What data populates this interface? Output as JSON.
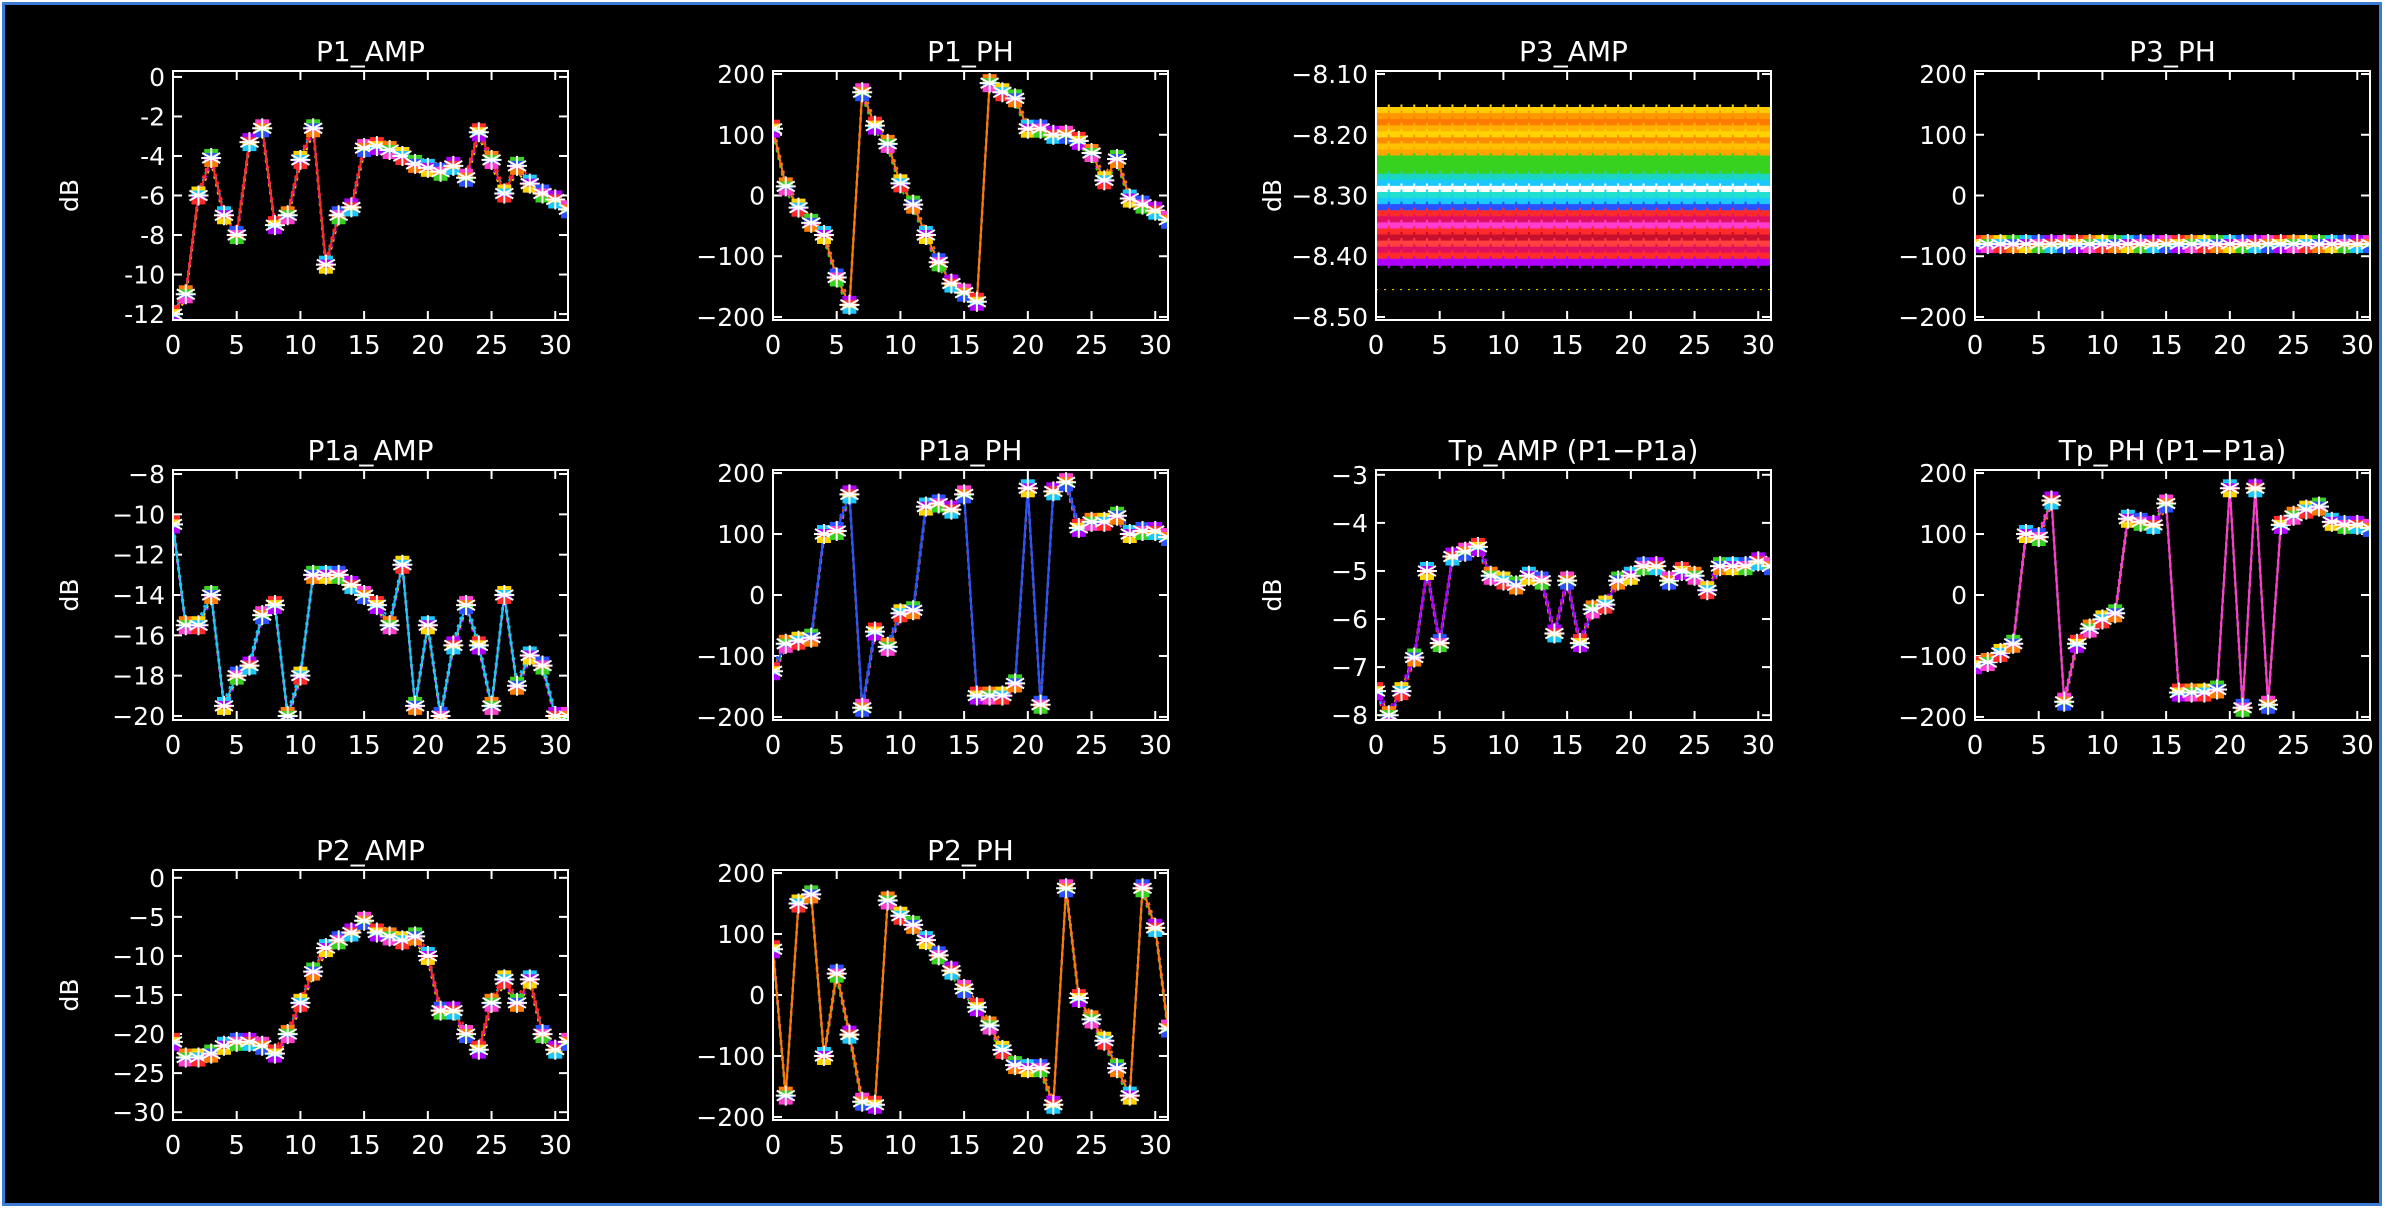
{
  "window": {
    "border_color": "#3a7bd5",
    "background": "#000000"
  },
  "chart_data": [
    {
      "type": "line",
      "title": "P1_AMP",
      "ylabel": "dB",
      "xlim": [
        0,
        31
      ],
      "ylim": [
        -12.3,
        0.3
      ],
      "xticks": [
        0,
        5,
        10,
        15,
        20,
        25,
        30
      ],
      "yticks": [
        0,
        -2,
        -4,
        -6,
        -8,
        -10,
        -12
      ],
      "ytick_labels": [
        "0",
        "-2",
        "-4",
        "-6",
        "-8",
        "-10",
        "-12"
      ],
      "x": [
        0,
        1,
        2,
        3,
        4,
        5,
        6,
        7,
        8,
        9,
        10,
        11,
        12,
        13,
        14,
        15,
        16,
        17,
        18,
        19,
        20,
        21,
        22,
        23,
        24,
        25,
        26,
        27,
        28,
        29,
        30,
        31
      ],
      "y": [
        -12,
        -11,
        -6,
        -4.1,
        -7,
        -8,
        -3.3,
        -2.6,
        -7.5,
        -7,
        -4.2,
        -2.6,
        -9.5,
        -7,
        -6.6,
        -3.6,
        -3.5,
        -3.7,
        -4,
        -4.4,
        -4.6,
        -4.8,
        -4.5,
        -5.1,
        -2.8,
        -4.2,
        -5.9,
        -4.5,
        -5.4,
        -5.9,
        -6.2,
        -6.7
      ]
    },
    {
      "type": "line",
      "title": "P1_PH",
      "ylabel": "",
      "xlim": [
        0,
        31
      ],
      "ylim": [
        -205,
        205
      ],
      "xticks": [
        0,
        5,
        10,
        15,
        20,
        25,
        30
      ],
      "yticks": [
        200,
        100,
        0,
        -100,
        -200
      ],
      "ytick_labels": [
        "200",
        "100",
        "0",
        "−100",
        "−200"
      ],
      "x": [
        0,
        1,
        2,
        3,
        4,
        5,
        6,
        7,
        8,
        9,
        10,
        11,
        12,
        13,
        14,
        15,
        16,
        17,
        18,
        19,
        20,
        21,
        22,
        23,
        24,
        25,
        26,
        27,
        28,
        29,
        30,
        31
      ],
      "y": [
        110,
        15,
        -20,
        -45,
        -65,
        -135,
        -180,
        170,
        115,
        85,
        20,
        -15,
        -65,
        -110,
        -145,
        -160,
        -175,
        185,
        170,
        160,
        110,
        110,
        100,
        100,
        90,
        70,
        25,
        60,
        -5,
        -15,
        -25,
        -40
      ]
    },
    {
      "type": "line",
      "title": "P3_AMP",
      "ylabel": "dB",
      "xlim": [
        0,
        31
      ],
      "ylim": [
        -8.505,
        -8.095
      ],
      "xticks": [
        0,
        5,
        10,
        15,
        20,
        25,
        30
      ],
      "yticks": [
        -8.1,
        -8.2,
        -8.3,
        -8.4,
        -8.5
      ],
      "ytick_labels": [
        "−8.10",
        "−8.20",
        "−8.30",
        "−8.40",
        "−8.50"
      ],
      "x": [
        0,
        31
      ],
      "y": [
        -8.33,
        -8.33
      ]
    },
    {
      "type": "line",
      "title": "P3_PH",
      "ylabel": "",
      "xlim": [
        0,
        31
      ],
      "ylim": [
        -205,
        205
      ],
      "xticks": [
        0,
        5,
        10,
        15,
        20,
        25,
        30
      ],
      "yticks": [
        200,
        100,
        0,
        -100,
        -200
      ],
      "ytick_labels": [
        "200",
        "100",
        "0",
        "−100",
        "−200"
      ],
      "x": [
        0,
        1,
        2,
        3,
        4,
        5,
        6,
        7,
        8,
        9,
        10,
        11,
        12,
        13,
        14,
        15,
        16,
        17,
        18,
        19,
        20,
        21,
        22,
        23,
        24,
        25,
        26,
        27,
        28,
        29,
        30,
        31
      ],
      "y": [
        -80,
        -80,
        -80,
        -80,
        -80,
        -80,
        -80,
        -80,
        -80,
        -80,
        -80,
        -80,
        -80,
        -80,
        -80,
        -80,
        -80,
        -80,
        -80,
        -80,
        -80,
        -80,
        -80,
        -80,
        -80,
        -80,
        -80,
        -80,
        -80,
        -80,
        -80,
        -80
      ]
    },
    {
      "type": "line",
      "title": "P1a_AMP",
      "ylabel": "dB",
      "xlim": [
        0,
        31
      ],
      "ylim": [
        -20.2,
        -7.8
      ],
      "xticks": [
        0,
        5,
        10,
        15,
        20,
        25,
        30
      ],
      "yticks": [
        -8,
        -10,
        -12,
        -14,
        -16,
        -18,
        -20
      ],
      "ytick_labels": [
        "−8",
        "−10",
        "−12",
        "−14",
        "−16",
        "−18",
        "−20"
      ],
      "x": [
        0,
        1,
        2,
        3,
        4,
        5,
        6,
        7,
        8,
        9,
        10,
        11,
        12,
        13,
        14,
        15,
        16,
        17,
        18,
        19,
        20,
        21,
        22,
        23,
        24,
        25,
        26,
        27,
        28,
        29,
        30,
        31
      ],
      "y": [
        -10.5,
        -15.5,
        -15.5,
        -14,
        -19.5,
        -18,
        -17.5,
        -15,
        -14.5,
        -20,
        -18,
        -13,
        -13,
        -13,
        -13.5,
        -14,
        -14.5,
        -15.5,
        -12.5,
        -19.5,
        -15.5,
        -20,
        -16.5,
        -14.5,
        -16.5,
        -19.5,
        -14,
        -18.5,
        -17,
        -17.5,
        -20,
        -20
      ]
    },
    {
      "type": "line",
      "title": "P1a_PH",
      "ylabel": "",
      "xlim": [
        0,
        31
      ],
      "ylim": [
        -205,
        205
      ],
      "xticks": [
        0,
        5,
        10,
        15,
        20,
        25,
        30
      ],
      "yticks": [
        200,
        100,
        0,
        -100,
        -200
      ],
      "ytick_labels": [
        "200",
        "100",
        "0",
        "−100",
        "−200"
      ],
      "x": [
        0,
        1,
        2,
        3,
        4,
        5,
        6,
        7,
        8,
        9,
        10,
        11,
        12,
        13,
        14,
        15,
        16,
        17,
        18,
        19,
        20,
        21,
        22,
        23,
        24,
        25,
        26,
        27,
        28,
        29,
        30,
        31
      ],
      "y": [
        -125,
        -80,
        -75,
        -70,
        100,
        105,
        165,
        -185,
        -60,
        -85,
        -30,
        -25,
        145,
        150,
        140,
        165,
        -165,
        -165,
        -165,
        -145,
        175,
        -180,
        170,
        185,
        110,
        120,
        120,
        130,
        100,
        105,
        105,
        95
      ]
    },
    {
      "type": "line",
      "title": "Tp_AMP (P1−P1a)",
      "ylabel": "dB",
      "xlim": [
        0,
        31
      ],
      "ylim": [
        -8.1,
        -2.9
      ],
      "xticks": [
        0,
        5,
        10,
        15,
        20,
        25,
        30
      ],
      "yticks": [
        -3,
        -4,
        -5,
        -6,
        -7,
        -8
      ],
      "ytick_labels": [
        "−3",
        "−4",
        "−5",
        "−6",
        "−7",
        "−8"
      ],
      "x": [
        0,
        1,
        2,
        3,
        4,
        5,
        6,
        7,
        8,
        9,
        10,
        11,
        12,
        13,
        14,
        15,
        16,
        17,
        18,
        19,
        20,
        21,
        22,
        23,
        24,
        25,
        26,
        27,
        28,
        29,
        30,
        31
      ],
      "y": [
        -7.5,
        -8,
        -7.5,
        -6.8,
        -5,
        -6.5,
        -4.7,
        -4.6,
        -4.5,
        -5.1,
        -5.2,
        -5.3,
        -5.1,
        -5.2,
        -6.3,
        -5.2,
        -6.5,
        -5.8,
        -5.7,
        -5.2,
        -5.1,
        -4.9,
        -4.9,
        -5.2,
        -5,
        -5.1,
        -5.4,
        -4.9,
        -4.9,
        -4.9,
        -4.8,
        -4.9
      ]
    },
    {
      "type": "line",
      "title": "Tp_PH (P1−P1a)",
      "ylabel": "",
      "xlim": [
        0,
        31
      ],
      "ylim": [
        -205,
        205
      ],
      "xticks": [
        0,
        5,
        10,
        15,
        20,
        25,
        30
      ],
      "yticks": [
        200,
        100,
        0,
        -100,
        -200
      ],
      "ytick_labels": [
        "200",
        "100",
        "0",
        "−100",
        "−200"
      ],
      "x": [
        0,
        1,
        2,
        3,
        4,
        5,
        6,
        7,
        8,
        9,
        10,
        11,
        12,
        13,
        14,
        15,
        16,
        17,
        18,
        19,
        20,
        21,
        22,
        23,
        24,
        25,
        26,
        27,
        28,
        29,
        30,
        31
      ],
      "y": [
        -115,
        -110,
        -95,
        -80,
        100,
        95,
        155,
        -175,
        -80,
        -55,
        -40,
        -30,
        125,
        120,
        115,
        150,
        -160,
        -160,
        -160,
        -155,
        175,
        -185,
        175,
        -180,
        115,
        130,
        140,
        145,
        120,
        115,
        115,
        110
      ]
    },
    {
      "type": "line",
      "title": "P2_AMP",
      "ylabel": "dB",
      "xlim": [
        0,
        31
      ],
      "ylim": [
        -31,
        1
      ],
      "xticks": [
        0,
        5,
        10,
        15,
        20,
        25,
        30
      ],
      "yticks": [
        0,
        -5,
        -10,
        -15,
        -20,
        -25,
        -30
      ],
      "ytick_labels": [
        "0",
        "−5",
        "−10",
        "−15",
        "−20",
        "−25",
        "−30"
      ],
      "x": [
        0,
        1,
        2,
        3,
        4,
        5,
        6,
        7,
        8,
        9,
        10,
        11,
        12,
        13,
        14,
        15,
        16,
        17,
        18,
        19,
        20,
        21,
        22,
        23,
        24,
        25,
        26,
        27,
        28,
        29,
        30,
        31
      ],
      "y": [
        -21,
        -23,
        -23,
        -22.5,
        -21.5,
        -21,
        -21,
        -21.5,
        -22.5,
        -20,
        -16,
        -12,
        -9,
        -8,
        -7,
        -5.5,
        -7,
        -7.5,
        -8,
        -7.5,
        -10,
        -17,
        -17,
        -20,
        -22,
        -16,
        -13,
        -16,
        -13,
        -20,
        -22,
        -21
      ]
    },
    {
      "type": "line",
      "title": "P2_PH",
      "ylabel": "",
      "xlim": [
        0,
        31
      ],
      "ylim": [
        -205,
        205
      ],
      "xticks": [
        0,
        5,
        10,
        15,
        20,
        25,
        30
      ],
      "yticks": [
        200,
        100,
        0,
        -100,
        -200
      ],
      "ytick_labels": [
        "200",
        "100",
        "0",
        "−100",
        "−200"
      ],
      "x": [
        0,
        1,
        2,
        3,
        4,
        5,
        6,
        7,
        8,
        9,
        10,
        11,
        12,
        13,
        14,
        15,
        16,
        17,
        18,
        19,
        20,
        21,
        22,
        23,
        24,
        25,
        26,
        27,
        28,
        29,
        30,
        31
      ],
      "y": [
        75,
        -165,
        150,
        165,
        -100,
        35,
        -65,
        -175,
        -180,
        155,
        130,
        115,
        90,
        65,
        40,
        10,
        -20,
        -50,
        -90,
        -115,
        -120,
        -120,
        -180,
        175,
        -5,
        -40,
        -75,
        -120,
        -165,
        175,
        110,
        -55
      ]
    }
  ]
}
